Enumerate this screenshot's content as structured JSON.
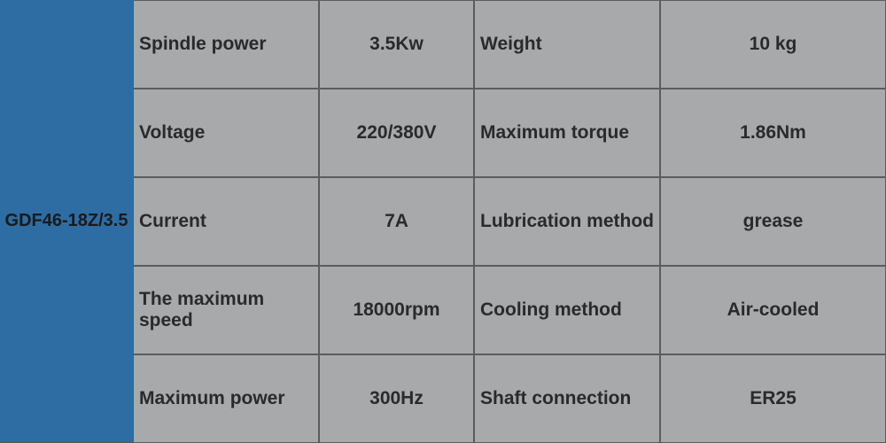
{
  "colors": {
    "header_bg": "#2e6da4",
    "header_text": "#1a1a1a",
    "cell_bg": "#a7a9ab",
    "cell_text": "#2a2a2a",
    "border": "#5a5c5e"
  },
  "model": "GDF46-18Z/3.5",
  "rows": [
    {
      "label1": "Spindle power",
      "value1": "3.5Kw",
      "label2": "Weight",
      "value2": "10 kg"
    },
    {
      "label1": "Voltage",
      "value1": "220/380V",
      "label2": "Maximum torque",
      "value2": "1.86Nm"
    },
    {
      "label1": "Current",
      "value1": "7A",
      "label2": "Lubrication method",
      "value2": "grease"
    },
    {
      "label1": "The maximum speed",
      "value1": "18000rpm",
      "label2": "Cooling method",
      "value2": "Air-cooled"
    },
    {
      "label1": "Maximum power",
      "value1": "300Hz",
      "label2": "Shaft connection",
      "value2": "ER25"
    }
  ]
}
